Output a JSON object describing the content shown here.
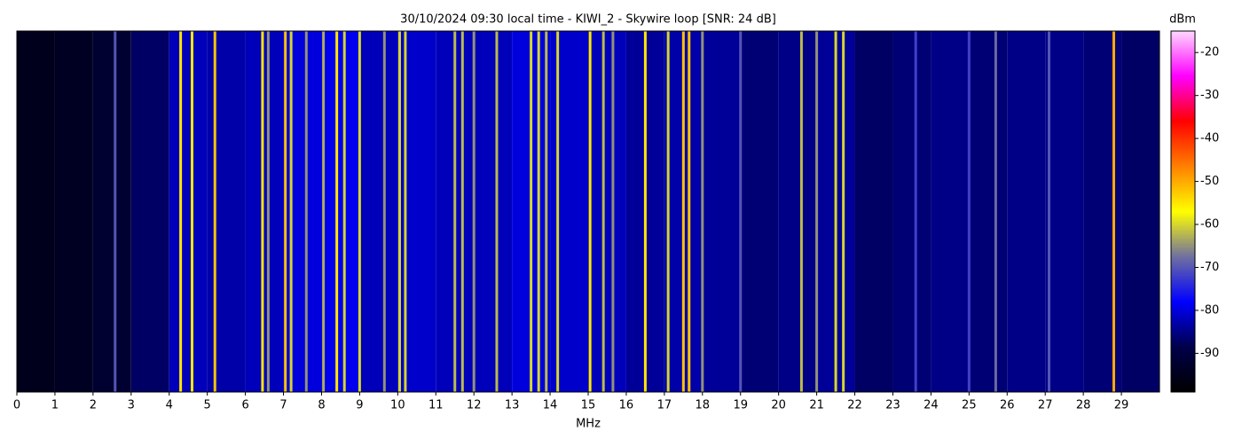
{
  "chart_data": {
    "type": "spectrogram",
    "title": "30/10/2024 09:30 local time - KIWI_2 - Skywire loop [SNR: 24 dB]",
    "xlabel": "MHz",
    "colorbar_label": "dBm",
    "xlim": [
      0,
      30
    ],
    "xticks": [
      0,
      1,
      2,
      3,
      4,
      5,
      6,
      7,
      8,
      9,
      10,
      11,
      12,
      13,
      14,
      15,
      16,
      17,
      18,
      19,
      20,
      21,
      22,
      23,
      24,
      25,
      26,
      27,
      28,
      29
    ],
    "clim": [
      -99,
      -15
    ],
    "cticks": [
      -90,
      -80,
      -70,
      -60,
      -50,
      -40,
      -30,
      -20
    ],
    "colormap": [
      "#000000",
      "#00004a",
      "#0000ff",
      "#7070a0",
      "#ffff00",
      "#ff8000",
      "#ff0000",
      "#ff00ff",
      "#ffd8ff"
    ],
    "noise": {
      "bins": [
        0,
        1,
        2,
        3,
        4,
        5,
        6,
        7,
        8,
        9,
        10,
        11,
        12,
        13,
        14,
        15,
        16,
        17,
        18,
        19,
        20,
        21,
        22,
        23,
        24,
        25,
        26,
        27,
        28,
        29,
        30
      ],
      "values": [
        -95,
        -94,
        -92,
        -87,
        -82,
        -83,
        -82,
        -80,
        -79,
        -82,
        -81,
        -82,
        -82,
        -80,
        -81,
        -82,
        -84,
        -83,
        -84,
        -86,
        -85,
        -84,
        -87,
        -86,
        -85,
        -86,
        -85,
        -85,
        -86,
        -87
      ]
    },
    "signals": {
      "x": [
        2.58,
        4.3,
        4.6,
        5.2,
        6.45,
        6.6,
        7.05,
        7.2,
        7.6,
        8.05,
        8.4,
        8.6,
        9.0,
        9.65,
        10.05,
        10.2,
        11.5,
        11.7,
        12.0,
        12.6,
        13.5,
        13.7,
        13.9,
        14.2,
        15.05,
        15.4,
        15.65,
        16.5,
        17.1,
        17.5,
        17.65,
        18.0,
        19.0,
        20.6,
        21.0,
        21.5,
        21.7,
        23.6,
        25.0,
        25.7,
        27.1,
        28.8
      ],
      "values": [
        -70,
        -55,
        -55,
        -52,
        -55,
        -65,
        -52,
        -60,
        -65,
        -63,
        -55,
        -60,
        -60,
        -65,
        -60,
        -60,
        -62,
        -62,
        -65,
        -62,
        -60,
        -60,
        -62,
        -60,
        -55,
        -62,
        -65,
        -55,
        -60,
        -52,
        -52,
        -65,
        -70,
        -62,
        -65,
        -60,
        -60,
        -72,
        -72,
        -68,
        -70,
        -50
      ]
    }
  }
}
